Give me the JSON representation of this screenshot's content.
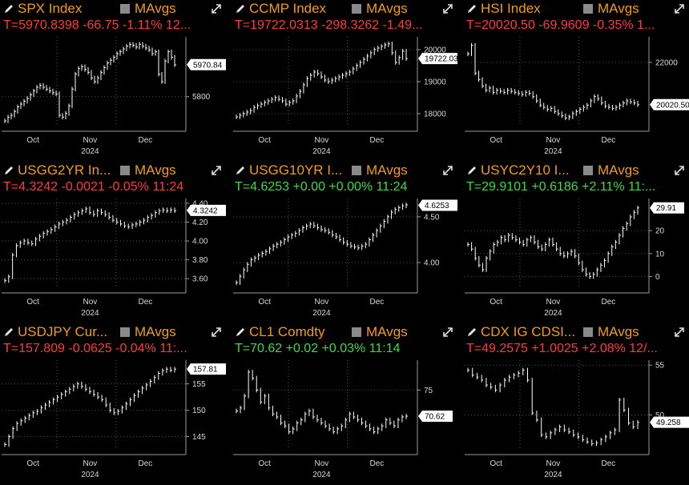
{
  "panels": [
    {
      "title": "SPX Index",
      "ma": "MAvgs",
      "quote": "T=5970.8398 -66.75 -1.11% 12...",
      "dir": "neg",
      "yticks": [
        {
          "v": 5800,
          "t": "5800"
        }
      ],
      "last": 5970.84,
      "last_label": "5970.84",
      "ymin": 5640,
      "ymax": 6120,
      "series": [
        5670,
        5690,
        5700,
        5720,
        5745,
        5760,
        5775,
        5790,
        5810,
        5830,
        5850,
        5860,
        5850,
        5840,
        5830,
        5820,
        5815,
        5700,
        5690,
        5710,
        5750,
        5840,
        5920,
        5950,
        5960,
        5945,
        5930,
        5900,
        5880,
        5900,
        5930,
        5955,
        5980,
        5995,
        6010,
        6030,
        6040,
        6055,
        6070,
        6080,
        6075,
        6065,
        6080,
        6070,
        6060,
        6050,
        6030,
        6040,
        5920,
        5880,
        5990,
        6040,
        6010,
        5970
      ],
      "months": [
        "Oct",
        "Nov",
        "Dec"
      ],
      "year": "2024"
    },
    {
      "title": "CCMP Index",
      "ma": "MAvgs",
      "quote": "T=19722.0313 -298.3262 -1.49...",
      "dir": "neg",
      "yticks": [
        {
          "v": 20000,
          "t": "20000"
        },
        {
          "v": 19000,
          "t": "19000"
        },
        {
          "v": 18000,
          "t": "18000"
        }
      ],
      "last": 19722.03,
      "last_label": "19722.03",
      "ymin": 17600,
      "ymax": 20400,
      "series": [
        17900,
        17950,
        18000,
        18050,
        18100,
        18200,
        18250,
        18300,
        18350,
        18400,
        18450,
        18500,
        18450,
        18400,
        18300,
        18350,
        18400,
        18550,
        18700,
        18900,
        19100,
        19200,
        19300,
        19250,
        19150,
        19050,
        19000,
        19050,
        19100,
        19150,
        19200,
        19250,
        19300,
        19400,
        19500,
        19600,
        19700,
        19800,
        19900,
        20000,
        20050,
        20100,
        20150,
        20180,
        19900,
        19600,
        19750,
        19950,
        19720
      ],
      "months": [
        "Oct",
        "Nov",
        "Dec"
      ],
      "year": "2024"
    },
    {
      "title": "HSI Index",
      "ma": "MAvgs",
      "quote": "T=20020.50 -69.9609 -0.35% 1...",
      "dir": "neg",
      "yticks": [
        {
          "v": 22000,
          "t": "22000"
        }
      ],
      "last": 20020.5,
      "last_label": "20020.50",
      "ymin": 19000,
      "ymax": 23200,
      "series": [
        22400,
        22800,
        21500,
        21200,
        20900,
        20700,
        20800,
        20600,
        20700,
        20650,
        20600,
        20700,
        20650,
        20600,
        20550,
        20500,
        20600,
        20550,
        20400,
        20200,
        20000,
        19900,
        19800,
        19850,
        19700,
        19600,
        19500,
        19400,
        19450,
        19600,
        19700,
        19800,
        19900,
        20000,
        20200,
        20400,
        20300,
        20100,
        19950,
        19900,
        19850,
        19900,
        20000,
        20100,
        20200,
        20150,
        20100,
        20020
      ],
      "months": [
        "Oct",
        "Nov",
        "Dec"
      ],
      "year": "2024"
    },
    {
      "title": "USGG2YR In...",
      "ma": "MAvgs",
      "quote": "T=4.3242 -0.0021 -0.05% 11:24",
      "dir": "neg",
      "yticks": [
        {
          "v": 4.4,
          "t": "4.40"
        },
        {
          "v": 4.2,
          "t": "4.20"
        },
        {
          "v": 4.0,
          "t": "4.00"
        },
        {
          "v": 3.8,
          "t": "3.80"
        },
        {
          "v": 3.6,
          "t": "3.60"
        }
      ],
      "last": 4.3242,
      "last_label": "4.3242",
      "ymin": 3.5,
      "ymax": 4.45,
      "series": [
        3.58,
        3.62,
        3.85,
        3.95,
        3.98,
        4.0,
        3.98,
        3.97,
        4.02,
        4.05,
        4.08,
        4.1,
        4.12,
        4.15,
        4.18,
        4.2,
        4.22,
        4.25,
        4.28,
        4.3,
        4.32,
        4.34,
        4.3,
        4.28,
        4.32,
        4.3,
        4.28,
        4.25,
        4.22,
        4.2,
        4.18,
        4.16,
        4.15,
        4.17,
        4.18,
        4.2,
        4.22,
        4.25,
        4.27,
        4.3,
        4.32,
        4.33,
        4.32,
        4.33,
        4.32
      ],
      "months": [
        "Oct",
        "Nov",
        "Dec"
      ],
      "year": "2024"
    },
    {
      "title": "USGG10YR I...",
      "ma": "MAvgs",
      "quote": "T=4.6253 +0.00 +0.00% 11:24",
      "dir": "pos",
      "yticks": [
        {
          "v": 4.5,
          "t": "4.50"
        },
        {
          "v": 4.0,
          "t": "4.00"
        }
      ],
      "last": 4.6253,
      "last_label": "4.6253",
      "ymin": 3.72,
      "ymax": 4.7,
      "series": [
        3.78,
        3.85,
        3.92,
        3.98,
        4.03,
        4.05,
        4.08,
        4.1,
        4.12,
        4.15,
        4.18,
        4.2,
        4.22,
        4.25,
        4.28,
        4.3,
        4.32,
        4.35,
        4.38,
        4.4,
        4.42,
        4.4,
        4.38,
        4.36,
        4.35,
        4.33,
        4.3,
        4.28,
        4.25,
        4.22,
        4.2,
        4.18,
        4.17,
        4.16,
        4.18,
        4.2,
        4.25,
        4.3,
        4.35,
        4.4,
        4.45,
        4.5,
        4.55,
        4.58,
        4.6,
        4.62,
        4.63
      ],
      "months": [
        "Oct",
        "Nov",
        "Dec"
      ],
      "year": "2024"
    },
    {
      "title": "USYC2Y10 I...",
      "ma": "MAvgs",
      "quote": "T=29.9101 +0.6186 +2.11% 11:...",
      "dir": "pos",
      "yticks": [
        {
          "v": 20,
          "t": "20"
        },
        {
          "v": 10,
          "t": "10"
        },
        {
          "v": 0,
          "t": "0"
        }
      ],
      "last": 29.91,
      "last_label": "29.91",
      "ymin": -5,
      "ymax": 34,
      "series": [
        14,
        12,
        8,
        5,
        3,
        8,
        11,
        14,
        15,
        17,
        16,
        18,
        17,
        16,
        15,
        14,
        16,
        17,
        15,
        13,
        12,
        14,
        16,
        14,
        12,
        10,
        9,
        10,
        11,
        9,
        6,
        3,
        1,
        0,
        1,
        3,
        5,
        7,
        10,
        13,
        15,
        18,
        21,
        23,
        26,
        28,
        29.9
      ],
      "months": [
        "Oct",
        "Nov",
        "Dec"
      ],
      "year": "2024"
    },
    {
      "title": "USDJPY Cur...",
      "ma": "MAvgs",
      "quote": "T=157.809 -0.0625 -0.04% 11:...",
      "dir": "neg",
      "yticks": [
        {
          "v": 155,
          "t": "155"
        },
        {
          "v": 150,
          "t": "150"
        },
        {
          "v": 145,
          "t": "145"
        }
      ],
      "last": 157.81,
      "last_label": "157.81",
      "ymin": 142.5,
      "ymax": 159.5,
      "series": [
        143.5,
        145,
        146.5,
        147.5,
        148,
        148.5,
        149,
        149.5,
        149.8,
        150.5,
        151,
        151.5,
        152,
        152.5,
        153,
        153.5,
        154,
        154.5,
        155,
        154.5,
        154,
        153.5,
        153,
        152.5,
        152,
        151,
        150,
        149.5,
        149.8,
        150.5,
        151.2,
        152,
        152.8,
        153.5,
        154.2,
        154.8,
        155.5,
        156.2,
        157,
        157.5,
        157.8,
        157.6,
        157.8
      ],
      "months": [
        "Oct",
        "Nov",
        "Dec"
      ],
      "year": "2024"
    },
    {
      "title": "CL1 Comdty",
      "ma": "MAvgs",
      "quote": "T=70.62 +0.02 +0.03% 11:14",
      "dir": "pos",
      "yticks": [
        {
          "v": 75,
          "t": "75"
        }
      ],
      "last": 70.62,
      "last_label": "70.62",
      "ymin": 65,
      "ymax": 80,
      "series": [
        71.5,
        72,
        74,
        78,
        77,
        75,
        73,
        74,
        72,
        71,
        70.5,
        69.5,
        69,
        68,
        68.5,
        69.5,
        70,
        71,
        71.5,
        70.5,
        70,
        69.5,
        69,
        68.5,
        68,
        68.5,
        69,
        70,
        71,
        70.5,
        70,
        69.5,
        69,
        68.5,
        68,
        68.5,
        69,
        70,
        69.5,
        69,
        70,
        70.5,
        70.62
      ],
      "months": [
        "Oct",
        "Nov",
        "Dec"
      ],
      "year": "2024"
    },
    {
      "title": "CDX IG CDSI...",
      "ma": "MAvgs",
      "quote": "T=49.2575 +1.0025 +2.08% 12/...",
      "dir": "neg",
      "yticks": [
        {
          "v": 55,
          "t": "55"
        },
        {
          "v": 50,
          "t": "50"
        }
      ],
      "last": 49.258,
      "last_label": "49.258",
      "ymin": 46.5,
      "ymax": 55.5,
      "series": [
        54.5,
        54,
        53.8,
        53.5,
        53,
        52.8,
        52.5,
        53,
        53.5,
        53.8,
        54,
        54.2,
        54.5,
        53.5,
        50.2,
        49.5,
        48,
        47.8,
        48.2,
        48.5,
        48.8,
        48.5,
        48.3,
        48,
        47.8,
        47.5,
        47.3,
        47.1,
        47.2,
        47.5,
        47.8,
        48.2,
        48.5,
        51.5,
        50.5,
        49.2,
        48.8,
        49.26
      ],
      "months": [
        "Oct",
        "Nov",
        "Dec"
      ],
      "year": "2024"
    }
  ]
}
